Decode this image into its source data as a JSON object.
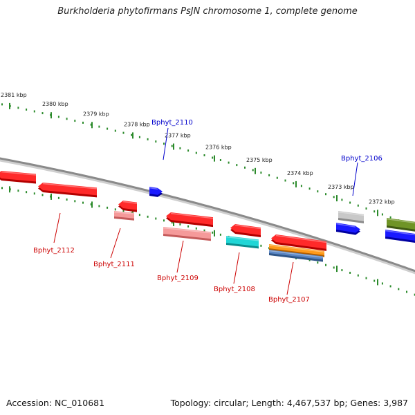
{
  "header": {
    "title": "Burkholderia phytofirmans PsJN chromosome 1, complete genome"
  },
  "footer": {
    "accession": "Accession: NC_010681",
    "topology": "Topology: circular; Length: 4,467,537 bp; Genes: 3,987"
  },
  "colors": {
    "backbone": "#8a8a8a",
    "ticks": "#2a8a2a",
    "label_red": "#cc0000",
    "label_blue": "#0000cc"
  },
  "scale_labels": [
    "2381 kbp",
    "2380 kbp",
    "2379 kbp",
    "2378 kbp",
    "2377 kbp",
    "2376 kbp",
    "2375 kbp",
    "2374 kbp",
    "2373 kbp",
    "2372 kbp"
  ],
  "features": [
    {
      "label": "",
      "color": "red",
      "strand": "forward"
    },
    {
      "label": "Bphyt_2112",
      "color": "red",
      "strand": "forward"
    },
    {
      "label": "Bphyt_2111",
      "color": "red",
      "strand": "forward"
    },
    {
      "label": "Bphyt_2111",
      "color": "pink",
      "strand": "none"
    },
    {
      "label": "Bphyt_2110",
      "color": "blue",
      "strand": "reverse"
    },
    {
      "label": "Bphyt_2109",
      "color": "red",
      "strand": "forward"
    },
    {
      "label": "Bphyt_2109",
      "color": "pink",
      "strand": "none"
    },
    {
      "label": "Bphyt_2108",
      "color": "red",
      "strand": "forward"
    },
    {
      "label": "Bphyt_2108",
      "color": "cyan",
      "strand": "none"
    },
    {
      "label": "Bphyt_2107",
      "color": "red",
      "strand": "forward"
    },
    {
      "label": "Bphyt_2107",
      "color": "orange",
      "strand": "none"
    },
    {
      "label": "Bphyt_2107",
      "color": "steelblue",
      "strand": "none"
    },
    {
      "label": "Bphyt_2106",
      "color": "gray",
      "strand": "none"
    },
    {
      "label": "Bphyt_2106",
      "color": "blue",
      "strand": "reverse"
    },
    {
      "label": "",
      "color": "olive",
      "strand": "none"
    },
    {
      "label": "",
      "color": "blue",
      "strand": "none"
    }
  ],
  "callouts": [
    "Bphyt_2112",
    "Bphyt_2111",
    "Bphyt_2110",
    "Bphyt_2109",
    "Bphyt_2108",
    "Bphyt_2107",
    "Bphyt_2106"
  ]
}
